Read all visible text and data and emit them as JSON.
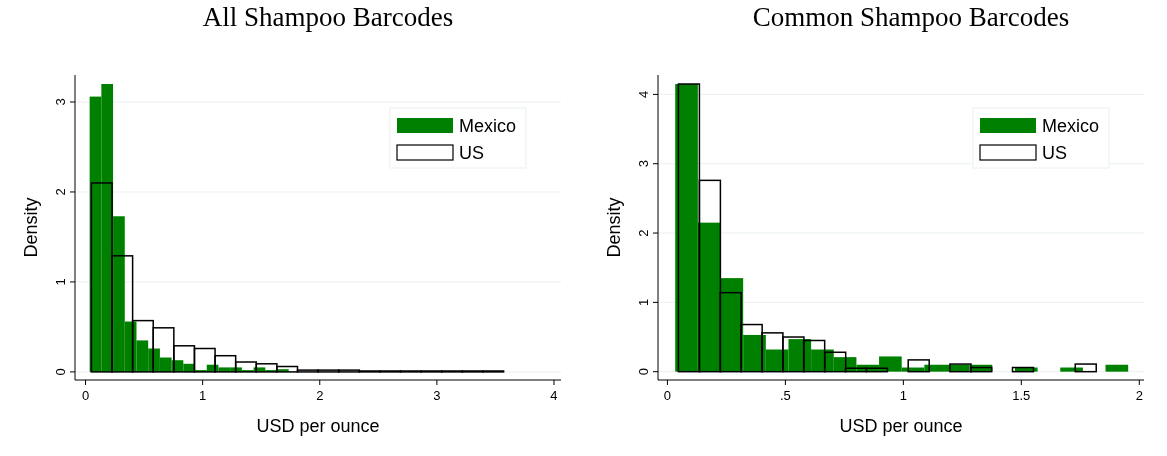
{
  "chart_data": [
    {
      "type": "bar",
      "title": "All Shampoo Barcodes",
      "xlabel": "USD per ounce",
      "ylabel": "Density",
      "xlim": [
        -0.09,
        4.06
      ],
      "ylim": [
        -0.09,
        3.3
      ],
      "xticks": [
        0,
        1,
        2,
        3,
        4
      ],
      "yticks": [
        0,
        1,
        2,
        3
      ],
      "grid": "y",
      "legend": "top right",
      "series": [
        {
          "name": "Mexico",
          "color": "#008000",
          "x": [
            0.085,
            0.185,
            0.285,
            0.385,
            0.485,
            0.585,
            0.685,
            0.785,
            0.885,
            0.985,
            1.085,
            1.185,
            1.285,
            1.385,
            1.485,
            1.585,
            1.685
          ],
          "values": [
            3.06,
            3.2,
            1.73,
            0.56,
            0.35,
            0.26,
            0.16,
            0.13,
            0.09,
            0.02,
            0.08,
            0.05,
            0.05,
            0.02,
            0.05,
            0.02,
            0.03
          ]
        },
        {
          "name": "US",
          "color": "#000000",
          "line_style": "solid",
          "x": [
            0.138,
            0.314,
            0.49,
            0.666,
            0.842,
            1.018,
            1.194,
            1.37,
            1.546,
            1.722,
            1.898,
            2.074,
            2.25,
            2.426,
            2.602,
            2.778,
            2.954,
            3.13,
            3.306,
            3.482
          ],
          "values": [
            2.1,
            1.29,
            0.57,
            0.49,
            0.29,
            0.26,
            0.18,
            0.11,
            0.09,
            0.06,
            0.02,
            0.02,
            0.02,
            0.01,
            0.01,
            0.01,
            0.01,
            0.01,
            0.01,
            0.01
          ]
        }
      ]
    },
    {
      "type": "bar",
      "title": "Common Shampoo Barcodes",
      "xlabel": "USD per ounce",
      "ylabel": "Density",
      "xlim": [
        -0.04,
        2.02
      ],
      "ylim": [
        -0.12,
        4.28
      ],
      "xticks": [
        0,
        {
          "value": 0.5,
          "label": ".5"
        },
        1,
        1.5,
        2
      ],
      "yticks": [
        0,
        1,
        2,
        3,
        4
      ],
      "grid": "y",
      "legend": "top right",
      "series": [
        {
          "name": "Mexico",
          "color": "#008000",
          "x": [
            0.081,
            0.177,
            0.273,
            0.369,
            0.465,
            0.561,
            0.657,
            0.753,
            0.849,
            0.945,
            1.041,
            1.137,
            1.233,
            1.329,
            1.425,
            1.521,
            1.617,
            1.713,
            1.809,
            1.905
          ],
          "values": [
            4.15,
            2.15,
            1.35,
            0.53,
            0.32,
            0.47,
            0.32,
            0.21,
            0.1,
            0.22,
            0.06,
            0.1,
            0.1,
            0.1,
            0,
            0.06,
            0,
            0.06,
            0,
            0.1
          ]
        },
        {
          "name": "US",
          "color": "#000000",
          "line_style": "solid",
          "x": [
            0.091,
            0.18,
            0.268,
            0.357,
            0.445,
            0.534,
            0.622,
            0.711,
            0.799,
            0.888,
            0.976,
            1.065,
            1.153,
            1.242,
            1.33,
            1.419,
            1.507,
            1.596,
            1.684,
            1.773
          ],
          "values": [
            4.15,
            2.76,
            1.14,
            0.68,
            0.56,
            0.5,
            0.45,
            0.28,
            0.05,
            0.05,
            0,
            0.17,
            0,
            0.11,
            0.06,
            0,
            0.06,
            0,
            0,
            0.11
          ]
        }
      ]
    }
  ]
}
